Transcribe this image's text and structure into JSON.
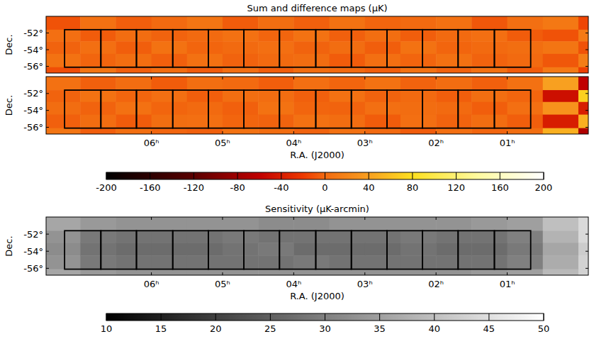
{
  "chart_data": [
    {
      "type": "heatmap",
      "title": "Sum and difference maps (μK)",
      "y_label": "Dec.",
      "color": "heat",
      "tick_labels": "y",
      "xlim": [
        7.48,
        -0.14
      ],
      "ylim": [
        -50,
        -56.8
      ],
      "yticks": [
        {
          "value": -52,
          "label": "-52°"
        },
        {
          "value": -54,
          "label": "-54°"
        },
        {
          "value": -56,
          "label": "-56°"
        }
      ],
      "x_edges": [
        7.48,
        7.0,
        6.5,
        6.0,
        5.5,
        5.0,
        4.5,
        4.0,
        3.5,
        3.0,
        2.5,
        2.0,
        1.5,
        1.0,
        0.5,
        0.0,
        -0.14
      ],
      "y_edges": [
        -50,
        -51.6,
        -53,
        -54.5,
        -56.1,
        -56.8
      ],
      "cells": [
        [
          -10,
          5,
          -5,
          0,
          8,
          -6,
          3,
          -4,
          6,
          -2,
          0,
          5,
          -8,
          4,
          10,
          -15
        ],
        [
          4,
          -6,
          2,
          -3,
          0,
          5,
          -2,
          6,
          -4,
          3,
          -5,
          0,
          4,
          -6,
          -10,
          12
        ],
        [
          -3,
          4,
          -5,
          6,
          -2,
          0,
          4,
          -3,
          2,
          -5,
          6,
          -2,
          0,
          3,
          8,
          -10
        ],
        [
          6,
          -2,
          3,
          -4,
          5,
          -3,
          0,
          2,
          -6,
          4,
          -2,
          5,
          -3,
          0,
          -8,
          14
        ],
        [
          -12,
          8,
          -4,
          2,
          -6,
          4,
          -5,
          3,
          0,
          -4,
          6,
          -3,
          5,
          -6,
          12,
          -18
        ]
      ],
      "color_range": [
        -200,
        200
      ],
      "boxes": {
        "ra_edges": [
          7.22,
          6.71,
          6.21,
          5.7,
          5.2,
          4.7,
          4.2,
          3.69,
          3.19,
          2.69,
          2.19,
          1.69,
          1.18,
          0.67
        ],
        "dec": [
          -51.6,
          -56.1
        ]
      }
    },
    {
      "type": "heatmap",
      "y_label": "Dec.",
      "x_label": "R.A. (J2000)",
      "color": "heat",
      "xlim": [
        7.48,
        -0.14
      ],
      "ylim": [
        -50,
        -56.8
      ],
      "xticks": [
        {
          "value": 6,
          "label": "06ʰ"
        },
        {
          "value": 5,
          "label": "05ʰ"
        },
        {
          "value": 4,
          "label": "04ʰ"
        },
        {
          "value": 3,
          "label": "03ʰ"
        },
        {
          "value": 2,
          "label": "02ʰ"
        },
        {
          "value": 1,
          "label": "01ʰ"
        }
      ],
      "yticks": [
        {
          "value": -52,
          "label": "-52°"
        },
        {
          "value": -54,
          "label": "-54°"
        },
        {
          "value": -56,
          "label": "-56°"
        }
      ],
      "x_edges": [
        7.48,
        7.0,
        6.5,
        6.0,
        5.5,
        5.0,
        4.5,
        4.0,
        3.5,
        3.0,
        2.5,
        2.0,
        1.5,
        1.0,
        0.5,
        0.0,
        -0.14
      ],
      "y_edges": [
        -50,
        -51.6,
        -53,
        -54.5,
        -56.1,
        -56.8
      ],
      "cells": [
        [
          5,
          -4,
          2,
          -6,
          3,
          0,
          -5,
          4,
          -2,
          6,
          -3,
          2,
          -4,
          5,
          40,
          -60
        ],
        [
          -3,
          6,
          -2,
          4,
          -5,
          3,
          2,
          -4,
          5,
          -3,
          0,
          -5,
          3,
          -2,
          -50,
          70
        ],
        [
          2,
          -3,
          5,
          -2,
          0,
          -4,
          6,
          -2,
          -3,
          4,
          2,
          0,
          -5,
          4,
          30,
          -40
        ],
        [
          -4,
          2,
          -6,
          3,
          4,
          -2,
          -3,
          5,
          2,
          -6,
          4,
          -3,
          2,
          -5,
          -40,
          50
        ],
        [
          8,
          -5,
          3,
          -2,
          -4,
          6,
          2,
          -3,
          5,
          0,
          -6,
          4,
          -2,
          3,
          50,
          -70
        ]
      ],
      "color_range": [
        -200,
        200
      ],
      "colorbar_ticks": [
        -200,
        -160,
        -120,
        -80,
        -40,
        0,
        40,
        80,
        120,
        160,
        200
      ],
      "boxes": {
        "ra_edges": [
          7.22,
          6.71,
          6.21,
          5.7,
          5.2,
          4.7,
          4.2,
          3.69,
          3.19,
          2.69,
          2.19,
          1.69,
          1.18,
          0.67
        ],
        "dec": [
          -51.6,
          -56.1
        ]
      }
    },
    {
      "type": "heatmap",
      "title": "Sensitivity (μK-arcmin)",
      "y_label": "Dec.",
      "x_label": "R.A. (J2000)",
      "color": "gray",
      "xlim": [
        7.48,
        -0.14
      ],
      "ylim": [
        -50,
        -56.8
      ],
      "xticks": [
        {
          "value": 6,
          "label": "06ʰ"
        },
        {
          "value": 5,
          "label": "05ʰ"
        },
        {
          "value": 4,
          "label": "04ʰ"
        },
        {
          "value": 3,
          "label": "03ʰ"
        },
        {
          "value": 2,
          "label": "02ʰ"
        },
        {
          "value": 1,
          "label": "01ʰ"
        }
      ],
      "yticks": [
        {
          "value": -52,
          "label": "-52°"
        },
        {
          "value": -54,
          "label": "-54°"
        },
        {
          "value": -56,
          "label": "-56°"
        }
      ],
      "x_edges": [
        7.48,
        7.0,
        6.5,
        6.0,
        5.5,
        5.0,
        4.5,
        4.0,
        3.5,
        3.0,
        2.5,
        2.0,
        1.5,
        1.0,
        0.5,
        0.0,
        -0.14
      ],
      "y_edges": [
        -50,
        -51.6,
        -53,
        -54.5,
        -56.1,
        -56.8
      ],
      "cells": [
        [
          36,
          34,
          33,
          33,
          33,
          33,
          32,
          32,
          33,
          33,
          33,
          33,
          34,
          35,
          40,
          44
        ],
        [
          33,
          29,
          28,
          28,
          28,
          29,
          28,
          28,
          28,
          28,
          29,
          28,
          28,
          30,
          38,
          44
        ],
        [
          32,
          28,
          27,
          27,
          27,
          28,
          29,
          27,
          27,
          27,
          28,
          27,
          27,
          29,
          36,
          42
        ],
        [
          33,
          29,
          28,
          28,
          28,
          28,
          28,
          29,
          28,
          28,
          28,
          28,
          28,
          30,
          37,
          43
        ],
        [
          36,
          34,
          33,
          33,
          33,
          33,
          33,
          33,
          33,
          33,
          33,
          33,
          34,
          35,
          39,
          43
        ]
      ],
      "color_range": [
        10,
        50
      ],
      "colorbar_ticks": [
        10,
        15,
        20,
        25,
        30,
        35,
        40,
        45,
        50
      ],
      "boxes": {
        "ra_edges": [
          7.22,
          6.71,
          6.21,
          5.7,
          5.2,
          4.7,
          4.2,
          3.69,
          3.19,
          2.69,
          2.19,
          1.69,
          1.18,
          0.67
        ],
        "dec": [
          -51.6,
          -56.1
        ]
      }
    }
  ]
}
